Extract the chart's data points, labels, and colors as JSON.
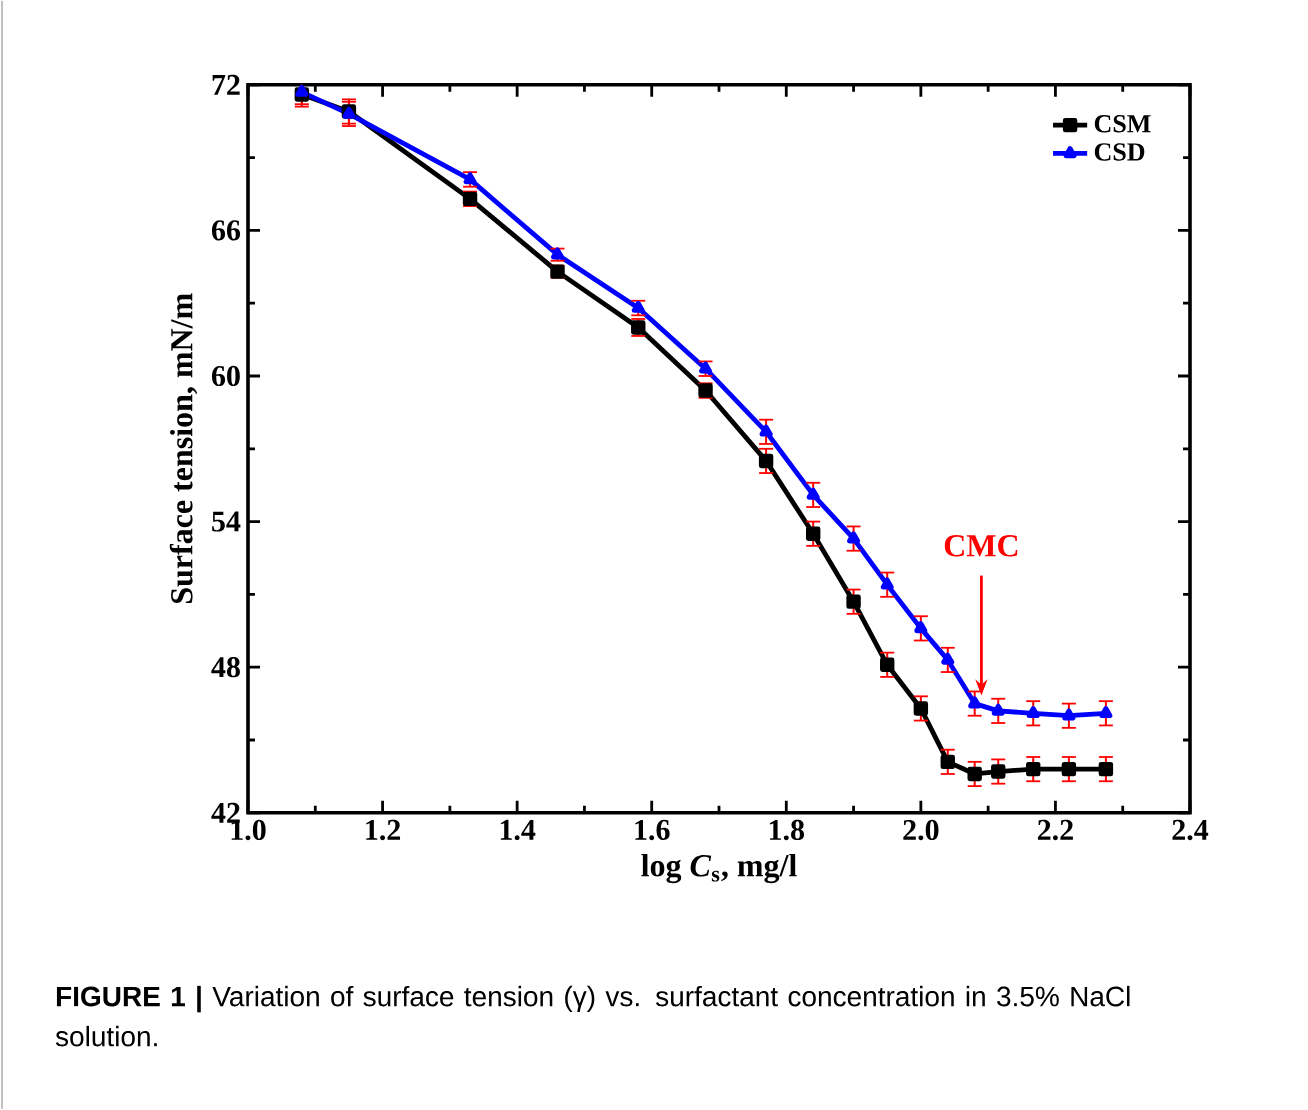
{
  "chart_data": {
    "type": "line",
    "xlabel": "log *C*$_{s}$, mg/l",
    "ylabel": "Surface tension, mN/m",
    "x": [
      1.08,
      1.15,
      1.33,
      1.46,
      1.58,
      1.68,
      1.77,
      1.84,
      1.9,
      1.95,
      2.0,
      2.04,
      2.08,
      2.115,
      2.167,
      2.22,
      2.275
    ],
    "series": [
      {
        "name": "CSM",
        "color": "#000000",
        "marker": "square",
        "values": [
          71.6,
          70.9,
          67.3,
          64.3,
          62.0,
          59.4,
          56.5,
          53.5,
          50.7,
          48.1,
          46.3,
          44.1,
          43.6,
          43.7,
          43.8,
          43.8,
          43.8
        ],
        "errors": [
          0.5,
          0.5,
          0.3,
          0.25,
          0.35,
          0.3,
          0.5,
          0.5,
          0.5,
          0.5,
          0.5,
          0.5,
          0.5,
          0.5,
          0.5,
          0.5,
          0.5
        ]
      },
      {
        "name": "CSD",
        "color": "#0000ff",
        "marker": "triangle",
        "values": [
          71.7,
          70.8,
          68.1,
          65.0,
          62.8,
          60.3,
          57.7,
          55.1,
          53.3,
          51.4,
          49.6,
          48.3,
          46.5,
          46.2,
          46.1,
          46.0,
          46.1
        ],
        "errors": [
          0.5,
          0.5,
          0.3,
          0.25,
          0.3,
          0.3,
          0.5,
          0.5,
          0.5,
          0.5,
          0.5,
          0.5,
          0.5,
          0.5,
          0.5,
          0.5,
          0.5
        ]
      }
    ],
    "xlim": [
      1.0,
      2.4
    ],
    "ylim": [
      42,
      72
    ],
    "xticks": [
      {
        "value": 1.0,
        "label": "1.0"
      },
      {
        "value": 1.2,
        "label": "1.2"
      },
      {
        "value": 1.4,
        "label": "1.4"
      },
      {
        "value": 1.6,
        "label": "1.6"
      },
      {
        "value": 1.8,
        "label": "1.8"
      },
      {
        "value": 2.0,
        "label": "2.0"
      },
      {
        "value": 2.2,
        "label": "2.2"
      },
      {
        "value": 2.4,
        "label": "2.4"
      }
    ],
    "yticks": [
      42,
      48,
      54,
      60,
      66,
      72
    ],
    "grid": false,
    "legend": "top right",
    "line_style": "solid",
    "annotations": [
      {
        "text": "CMC",
        "x": 2.09,
        "y": 46.5
      },
      "**FIGURE 1 |** Variation of surface tension (γ) vs. surfactant concentration in 3.5% NaCl solution."
    ]
  }
}
